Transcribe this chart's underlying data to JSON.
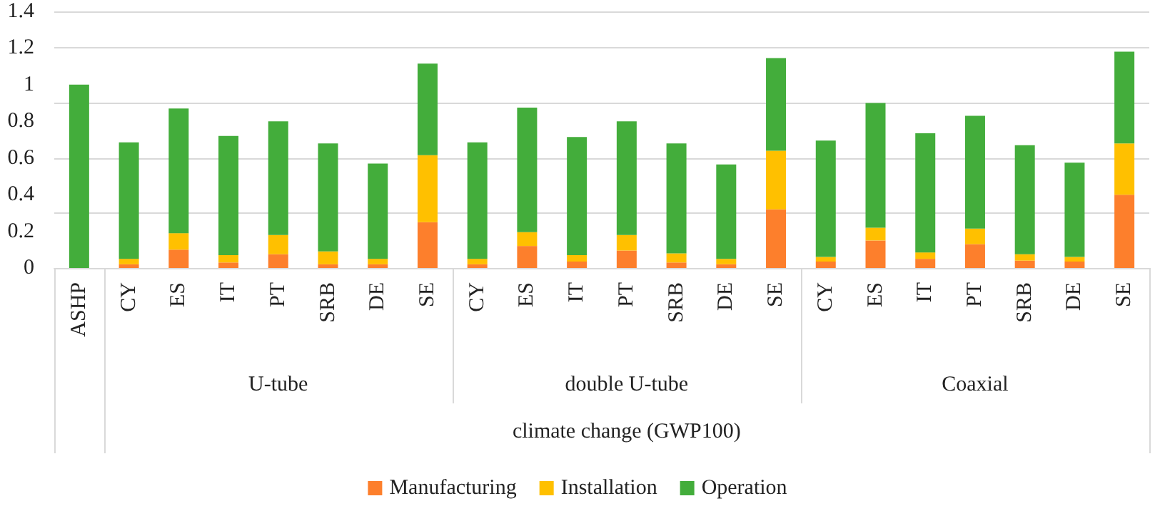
{
  "chart_data": {
    "type": "bar",
    "stacked": true,
    "xlabel": "climate change (GWP100)",
    "categories": [
      "ASHP",
      "CY",
      "ES",
      "IT",
      "PT",
      "SRB",
      "DE",
      "SE",
      "CY",
      "ES",
      "IT",
      "PT",
      "SRB",
      "DE",
      "SE",
      "CY",
      "ES",
      "IT",
      "PT",
      "SRB",
      "DE",
      "SE"
    ],
    "series": [
      {
        "name": "Manufacturing",
        "color": "#fd7f2c",
        "values": [
          0,
          0.02,
          0.1,
          0.03,
          0.075,
          0.02,
          0.02,
          0.25,
          0.02,
          0.12,
          0.035,
          0.095,
          0.03,
          0.02,
          0.32,
          0.035,
          0.15,
          0.05,
          0.13,
          0.04,
          0.035,
          0.4
        ]
      },
      {
        "name": "Installation",
        "color": "#ffc000",
        "values": [
          0,
          0.03,
          0.09,
          0.04,
          0.105,
          0.07,
          0.03,
          0.365,
          0.03,
          0.075,
          0.035,
          0.085,
          0.05,
          0.03,
          0.32,
          0.025,
          0.07,
          0.035,
          0.085,
          0.035,
          0.025,
          0.28
        ]
      },
      {
        "name": "Operation",
        "color": "#43ad3b",
        "values": [
          1.0,
          0.635,
          0.68,
          0.65,
          0.62,
          0.59,
          0.52,
          0.5,
          0.635,
          0.68,
          0.645,
          0.62,
          0.6,
          0.515,
          0.505,
          0.635,
          0.68,
          0.65,
          0.615,
          0.595,
          0.515,
          0.5
        ]
      }
    ],
    "annotations": [
      "U-tube",
      "double U-tube",
      "Coaxial"
    ],
    "ylim": [
      0,
      1.4
    ],
    "yticks": [
      0,
      0.2,
      0.4,
      0.6,
      0.8,
      1,
      1.2,
      1.4
    ],
    "grid": "y",
    "legend": "bottom"
  }
}
